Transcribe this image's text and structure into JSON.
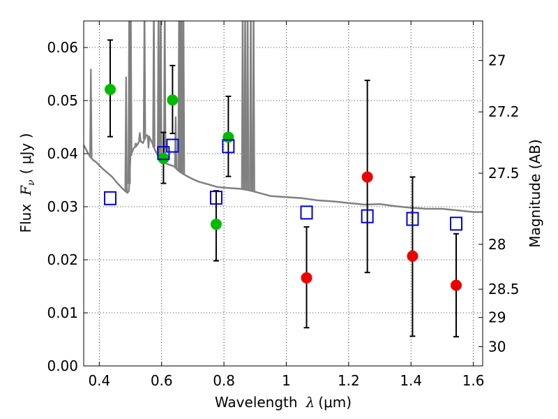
{
  "chart_data": {
    "type": "scatter",
    "xlabel": "Wavelength",
    "xlabel_symbol": "λ",
    "xlabel_unit": "(μm)",
    "ylabel": "Flux",
    "ylabel_symbol": "F",
    "ylabel_sub": "ν",
    "ylabel_unit": "( μJy )",
    "y2label": "Magnitude (AB)",
    "xlim": [
      0.35,
      1.63
    ],
    "ylim": [
      0.0,
      0.065
    ],
    "grid": true,
    "x_ticks": [
      {
        "v": 0.4,
        "label": "0.4"
      },
      {
        "v": 0.6,
        "label": "0.6"
      },
      {
        "v": 0.8,
        "label": "0.8"
      },
      {
        "v": 1.0,
        "label": "1"
      },
      {
        "v": 1.2,
        "label": "1.2"
      },
      {
        "v": 1.4,
        "label": "1.4"
      },
      {
        "v": 1.6,
        "label": "1.6"
      }
    ],
    "y_ticks": [
      {
        "v": 0.0,
        "label": "0.00"
      },
      {
        "v": 0.01,
        "label": "0.01"
      },
      {
        "v": 0.02,
        "label": "0.02"
      },
      {
        "v": 0.03,
        "label": "0.03"
      },
      {
        "v": 0.04,
        "label": "0.04"
      },
      {
        "v": 0.05,
        "label": "0.05"
      },
      {
        "v": 0.06,
        "label": "0.06"
      }
    ],
    "y2_ticks": [
      {
        "mag": 27,
        "label": "27"
      },
      {
        "mag": 27.2,
        "label": "27.2"
      },
      {
        "mag": 27.5,
        "label": "27.5"
      },
      {
        "mag": 28,
        "label": "28"
      },
      {
        "mag": 28.5,
        "label": "28.5"
      },
      {
        "mag": 29,
        "label": "29"
      },
      {
        "mag": 30,
        "label": "30"
      }
    ],
    "colors": {
      "sed": "#808080",
      "green": "#00bb00",
      "red": "#ee0000",
      "model": "#0000dd",
      "grid": "#000000"
    },
    "series": [
      {
        "kind": "model_sed",
        "points": [
          [
            0.35,
            0.0416
          ],
          [
            0.36,
            0.0405
          ],
          [
            0.37,
            0.0395
          ],
          [
            0.38,
            0.0388
          ],
          [
            0.39,
            0.0384
          ],
          [
            0.4,
            0.0378
          ],
          [
            0.41,
            0.0372
          ],
          [
            0.42,
            0.0367
          ],
          [
            0.43,
            0.0362
          ],
          [
            0.44,
            0.0357
          ],
          [
            0.45,
            0.035
          ],
          [
            0.46,
            0.0343
          ],
          [
            0.47,
            0.0337
          ],
          [
            0.48,
            0.0331
          ],
          [
            0.49,
            0.0326
          ],
          [
            0.495,
            0.033
          ],
          [
            0.5,
            0.0395
          ],
          [
            0.51,
            0.041
          ],
          [
            0.52,
            0.0415
          ],
          [
            0.53,
            0.0425
          ],
          [
            0.54,
            0.042
          ],
          [
            0.55,
            0.0435
          ],
          [
            0.56,
            0.0432
          ],
          [
            0.57,
            0.042
          ],
          [
            0.58,
            0.0405
          ],
          [
            0.59,
            0.0395
          ],
          [
            0.6,
            0.0388
          ],
          [
            0.61,
            0.0383
          ],
          [
            0.62,
            0.038
          ],
          [
            0.63,
            0.0378
          ],
          [
            0.64,
            0.0376
          ],
          [
            0.65,
            0.037
          ],
          [
            0.66,
            0.0365
          ],
          [
            0.68,
            0.0358
          ],
          [
            0.7,
            0.0352
          ],
          [
            0.72,
            0.0347
          ],
          [
            0.75,
            0.0342
          ],
          [
            0.78,
            0.0337
          ],
          [
            0.8,
            0.0336
          ],
          [
            0.82,
            0.0335
          ],
          [
            0.85,
            0.0334
          ],
          [
            0.88,
            0.0331
          ],
          [
            0.9,
            0.0328
          ],
          [
            0.95,
            0.032
          ],
          [
            1.0,
            0.0318
          ],
          [
            1.05,
            0.0316
          ],
          [
            1.1,
            0.0312
          ],
          [
            1.15,
            0.031
          ],
          [
            1.2,
            0.0307
          ],
          [
            1.25,
            0.0304
          ],
          [
            1.3,
            0.0305
          ],
          [
            1.35,
            0.0301
          ],
          [
            1.4,
            0.0298
          ],
          [
            1.45,
            0.0296
          ],
          [
            1.5,
            0.0296
          ],
          [
            1.55,
            0.0293
          ],
          [
            1.6,
            0.029
          ],
          [
            1.63,
            0.029
          ]
        ],
        "emission_lines": [
          [
            0.373,
            0.056
          ],
          [
            0.486,
            0.0545
          ],
          [
            0.496,
            0.07
          ],
          [
            0.501,
            0.07
          ],
          [
            0.517,
            0.042
          ],
          [
            0.53,
            0.044
          ],
          [
            0.545,
            0.07
          ],
          [
            0.558,
            0.041
          ],
          [
            0.575,
            0.07
          ],
          [
            0.59,
            0.07
          ],
          [
            0.597,
            0.07
          ],
          [
            0.61,
            0.07
          ],
          [
            0.645,
            0.047
          ],
          [
            0.656,
            0.07
          ],
          [
            0.66,
            0.07
          ],
          [
            0.664,
            0.07
          ],
          [
            0.67,
            0.07
          ],
          [
            0.86,
            0.07
          ],
          [
            0.868,
            0.07
          ],
          [
            0.876,
            0.07
          ],
          [
            0.886,
            0.07
          ],
          [
            0.895,
            0.07
          ]
        ]
      },
      {
        "kind": "observed_green",
        "points": [
          {
            "x": 0.435,
            "y": 0.0521,
            "lo": 0.0432,
            "hi": 0.0614
          },
          {
            "x": 0.606,
            "y": 0.0391,
            "lo": 0.0344,
            "hi": 0.044
          },
          {
            "x": 0.635,
            "y": 0.0501,
            "lo": 0.0438,
            "hi": 0.0566
          },
          {
            "x": 0.775,
            "y": 0.0267,
            "lo": 0.0198,
            "hi": 0.033
          },
          {
            "x": 0.814,
            "y": 0.0431,
            "lo": 0.0357,
            "hi": 0.0508
          }
        ]
      },
      {
        "kind": "observed_red",
        "points": [
          {
            "x": 1.065,
            "y": 0.0166,
            "lo": 0.0072,
            "hi": 0.0262
          },
          {
            "x": 1.26,
            "y": 0.0356,
            "lo": 0.0176,
            "hi": 0.0538
          },
          {
            "x": 1.405,
            "y": 0.0207,
            "lo": 0.0056,
            "hi": 0.0356
          },
          {
            "x": 1.545,
            "y": 0.0152,
            "lo": 0.0055,
            "hi": 0.0249
          }
        ]
      },
      {
        "kind": "model_band",
        "points": [
          {
            "x": 0.435,
            "y": 0.0316
          },
          {
            "x": 0.606,
            "y": 0.0401
          },
          {
            "x": 0.635,
            "y": 0.0415
          },
          {
            "x": 0.775,
            "y": 0.0317
          },
          {
            "x": 0.814,
            "y": 0.0414
          },
          {
            "x": 1.065,
            "y": 0.0289
          },
          {
            "x": 1.26,
            "y": 0.0282
          },
          {
            "x": 1.405,
            "y": 0.0277
          },
          {
            "x": 1.545,
            "y": 0.0268
          }
        ]
      }
    ]
  }
}
